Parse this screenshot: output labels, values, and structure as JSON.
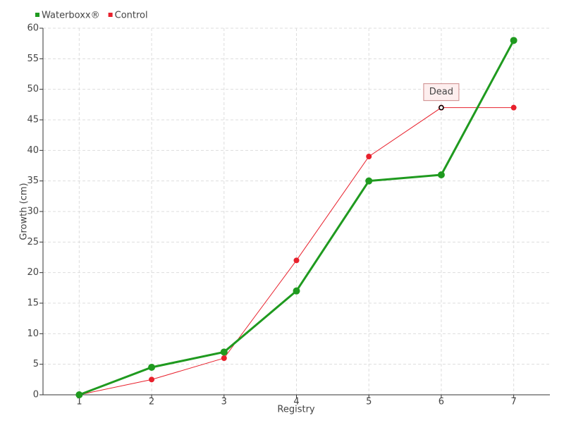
{
  "chart_data": {
    "type": "line",
    "x_label": "Registry",
    "y_label": "Growth (cm)",
    "categories": [
      "1",
      "2",
      "3",
      "4",
      "5",
      "6",
      "7"
    ],
    "series": [
      {
        "name": "Waterboxx®",
        "color": "#1f9a1f",
        "values": [
          0,
          4.5,
          7,
          17,
          35,
          36,
          58
        ]
      },
      {
        "name": "Control",
        "color": "#e8202c",
        "values": [
          0,
          2.5,
          6,
          22,
          39,
          47,
          47
        ]
      }
    ],
    "ylim": [
      0,
      60
    ],
    "yticks": [
      0,
      5,
      10,
      15,
      20,
      25,
      30,
      35,
      40,
      45,
      50,
      55,
      60
    ],
    "grid": true,
    "legend": "top-left",
    "annotations": [
      {
        "label": "Dead",
        "x": "6",
        "y": 47
      }
    ]
  }
}
